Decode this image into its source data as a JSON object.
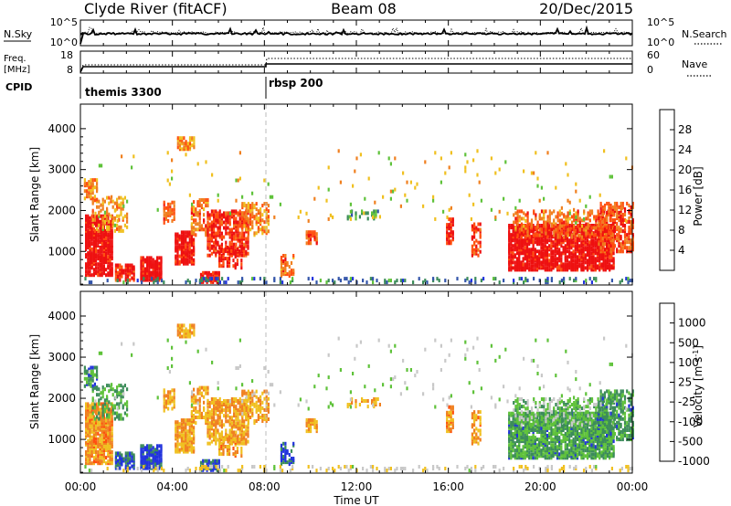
{
  "header": {
    "station": "Clyde River (fitACF)",
    "beam": "Beam 08",
    "date": "20/Dec/2015"
  },
  "colors": {
    "frame": "#000000",
    "trace": "#000000",
    "marker_line": "#bbbbbb",
    "power_scale": [
      "#2233dd",
      "#3355aa",
      "#3c8c5a",
      "#5fc23a",
      "#f0c020",
      "#f08020",
      "#ff5010",
      "#ee1010"
    ],
    "velocity_scale": [
      "#ee1010",
      "#ff5010",
      "#f08020",
      "#f0c020",
      "#c8c8c8",
      "#5fc23a",
      "#3c8c5a",
      "#2233dd"
    ]
  },
  "chart_data": [
    {
      "type": "line",
      "panel": "search-sky-noise",
      "ylabel_left": "N.Sky",
      "ylabel_right": "N.Search",
      "yticks_left": [
        "10^5",
        "10^0"
      ],
      "yticks_right": [
        "10^5",
        "10^0"
      ],
      "series": [
        {
          "name": "N.Sky",
          "style": "solid"
        },
        {
          "name": "N.Search",
          "style": "dotted"
        }
      ]
    },
    {
      "type": "line",
      "panel": "frequency-nave",
      "ylabel_left": "Freq. [MHz]",
      "ylabel_right": "Nave",
      "yticks_left": [
        "18",
        "8"
      ],
      "yticks_right": [
        "60",
        "0"
      ],
      "series": [
        {
          "name": "Freq.",
          "style": "solid"
        },
        {
          "name": "Nave",
          "style": "dotted"
        }
      ]
    },
    {
      "type": "table",
      "panel": "cpid",
      "label": "CPID",
      "entries": [
        {
          "start_hour": 0,
          "name": "themis 3300"
        },
        {
          "start_hour": 8,
          "name": "rbsp 200"
        }
      ]
    },
    {
      "type": "heatmap",
      "panel": "power",
      "ylabel": "Slant Range [km]",
      "yticks": [
        "1000",
        "2000",
        "3000",
        "4000"
      ],
      "ylim": [
        180,
        4600
      ],
      "colorbar_label": "Power [dB]",
      "colorbar_ticks": [
        "28",
        "24",
        "20",
        "16",
        "12",
        "8",
        "4"
      ],
      "colorbar_range": [
        0,
        32
      ]
    },
    {
      "type": "heatmap",
      "panel": "velocity",
      "ylabel": "Slant Range [km]",
      "yticks": [
        "1000",
        "2000",
        "3000",
        "4000"
      ],
      "ylim": [
        180,
        4600
      ],
      "colorbar_label": "Velocity [m s⁻¹]",
      "colorbar_ticks": [
        "1000",
        "500",
        "100",
        "25",
        "-25",
        "-100",
        "-500",
        "-1000"
      ]
    }
  ],
  "x_axis": {
    "label": "Time UT",
    "ticks": [
      "00:00",
      "04:00",
      "08:00",
      "12:00",
      "16:00",
      "20:00",
      "00:00"
    ],
    "xlim_hours": [
      0,
      24
    ]
  },
  "scatter_patches": [
    {
      "t0": 0.2,
      "t1": 1.4,
      "r0": 420,
      "r1": 1900,
      "d": 0.75,
      "pc": 7.5,
      "vc": 2.2
    },
    {
      "t0": 0.15,
      "t1": 0.7,
      "r0": 2250,
      "r1": 2750,
      "d": 0.5,
      "pc": 5,
      "vc": 6
    },
    {
      "t0": 0.5,
      "t1": 2.0,
      "r0": 1500,
      "r1": 2350,
      "d": 0.3,
      "pc": 4.5,
      "vc": 5.5
    },
    {
      "t0": 1.5,
      "t1": 2.3,
      "r0": 300,
      "r1": 700,
      "d": 0.55,
      "pc": 6.5,
      "vc": 6.5
    },
    {
      "t0": 2.6,
      "t1": 3.5,
      "r0": 300,
      "r1": 850,
      "d": 0.85,
      "pc": 7.5,
      "vc": 7
    },
    {
      "t0": 3.6,
      "t1": 4.1,
      "r0": 1700,
      "r1": 2200,
      "d": 0.5,
      "pc": 5.5,
      "vc": 2.5
    },
    {
      "t0": 4.1,
      "t1": 4.9,
      "r0": 700,
      "r1": 1500,
      "d": 0.7,
      "pc": 7,
      "vc": 2.5
    },
    {
      "t0": 4.2,
      "t1": 4.9,
      "r0": 3500,
      "r1": 3800,
      "d": 0.55,
      "pc": 5,
      "vc": 2.5
    },
    {
      "t0": 4.8,
      "t1": 5.5,
      "r0": 1400,
      "r1": 2300,
      "d": 0.4,
      "pc": 5.5,
      "vc": 2.5
    },
    {
      "t0": 5.5,
      "t1": 7.3,
      "r0": 900,
      "r1": 2000,
      "d": 0.55,
      "pc": 6.5,
      "vc": 2.5
    },
    {
      "t0": 6.0,
      "t1": 7.0,
      "r0": 600,
      "r1": 1100,
      "d": 0.4,
      "pc": 7,
      "vc": 2.4
    },
    {
      "t0": 7.0,
      "t1": 8.2,
      "r0": 1400,
      "r1": 2200,
      "d": 0.4,
      "pc": 5,
      "vc": 2.6
    },
    {
      "t0": 5.2,
      "t1": 6.0,
      "r0": 250,
      "r1": 500,
      "d": 0.6,
      "pc": 7,
      "vc": 6.5
    },
    {
      "t0": 8.7,
      "t1": 9.3,
      "r0": 400,
      "r1": 900,
      "d": 0.45,
      "pc": 5.5,
      "vc": 6.5
    },
    {
      "t0": 9.8,
      "t1": 10.3,
      "r0": 1200,
      "r1": 1500,
      "d": 0.6,
      "pc": 6,
      "vc": 2.5
    },
    {
      "t0": 11.5,
      "t1": 13.0,
      "r0": 1800,
      "r1": 2000,
      "d": 0.35,
      "pc": 2.5,
      "vc": 2.5
    },
    {
      "t0": 15.9,
      "t1": 16.2,
      "r0": 1200,
      "r1": 1800,
      "d": 0.6,
      "pc": 7,
      "vc": 2.2
    },
    {
      "t0": 17.0,
      "t1": 17.4,
      "r0": 900,
      "r1": 1700,
      "d": 0.45,
      "pc": 6.5,
      "vc": 2.4
    },
    {
      "t0": 18.6,
      "t1": 23.2,
      "r0": 550,
      "r1": 1650,
      "d": 0.75,
      "pc": 7.4,
      "vc": 5.6
    },
    {
      "t0": 18.8,
      "t1": 23.2,
      "r0": 1350,
      "r1": 2000,
      "d": 0.35,
      "pc": 5.5,
      "vc": 5
    },
    {
      "t0": 22.5,
      "t1": 24.0,
      "r0": 1000,
      "r1": 2200,
      "d": 0.45,
      "pc": 6,
      "vc": 5.7
    },
    {
      "t0": 0.0,
      "t1": 24.0,
      "r0": 200,
      "r1": 360,
      "d": 0.2,
      "pc": 1.5,
      "vc": 3.6
    },
    {
      "t0": 0.0,
      "t1": 24.0,
      "r0": 1700,
      "r1": 3500,
      "d": 0.015,
      "pc": 4,
      "vc": 4.5
    }
  ]
}
